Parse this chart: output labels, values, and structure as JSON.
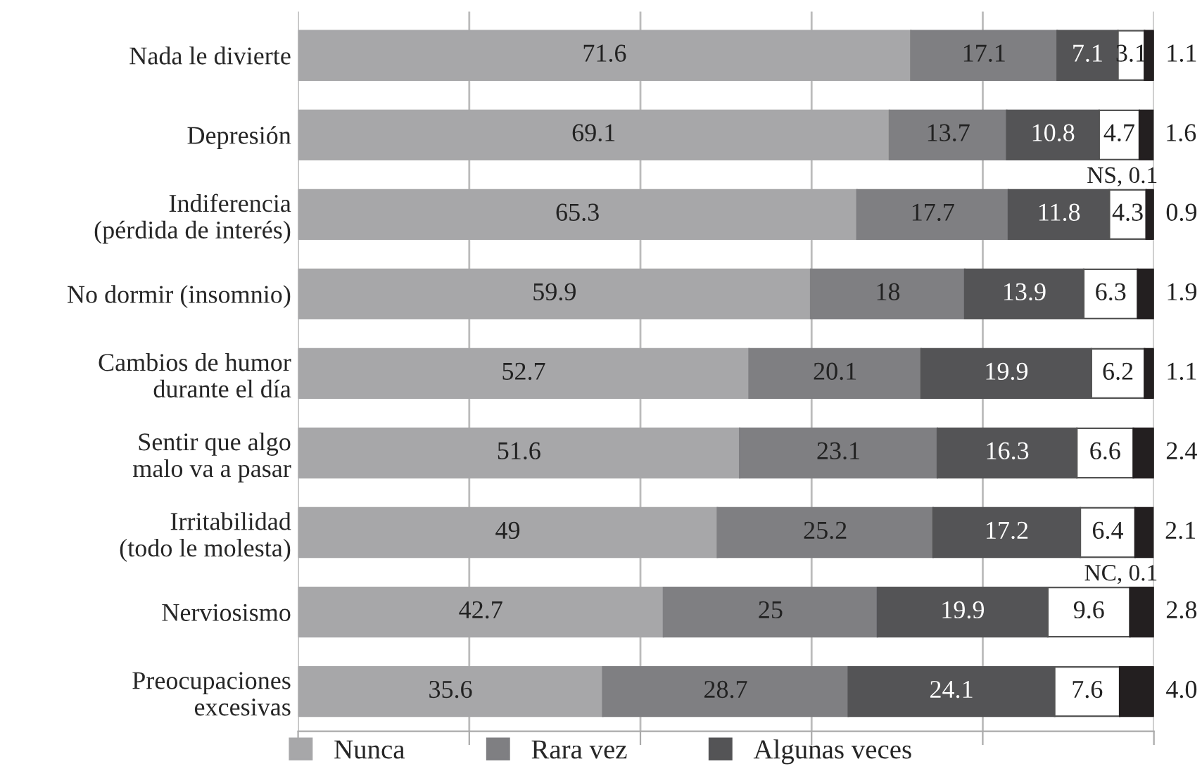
{
  "chart_data": {
    "type": "bar",
    "orientation": "horizontal",
    "stacked": true,
    "categories": [
      "Nada le divierte",
      "Depresión",
      "Indiferencia\n(pérdida de interés)",
      "No dormir (insomnio)",
      "Cambios de humor\ndurante el día",
      "Sentir que algo\nmalo va a pasar",
      "Irritabilidad\n(todo le molesta)",
      "Nerviosismo",
      "Preocupaciones\nexcesivas"
    ],
    "series": [
      {
        "name": "Nunca",
        "color": "#a7a7a9",
        "values": [
          71.6,
          69.1,
          65.3,
          59.9,
          52.7,
          51.6,
          49,
          42.7,
          35.6
        ],
        "value_labels": [
          "71.6",
          "69.1",
          "65.3",
          "59.9",
          "52.7",
          "51.6",
          "49",
          "42.7",
          "35.6"
        ]
      },
      {
        "name": "Rara vez",
        "color": "#7f7f82",
        "values": [
          17.1,
          13.7,
          17.7,
          18,
          20.1,
          23.1,
          25.2,
          25,
          28.7
        ],
        "value_labels": [
          "17.1",
          "13.7",
          "17.7",
          "18",
          "20.1",
          "23.1",
          "25.2",
          "25",
          "28.7"
        ]
      },
      {
        "name": "Algunas veces",
        "color": "#545456",
        "values": [
          7.1,
          10.8,
          11.8,
          13.9,
          19.9,
          16.3,
          17.2,
          19.9,
          24.1
        ],
        "value_labels": [
          "7.1",
          "10.8",
          "11.8",
          "13.9",
          "19.9",
          "16.3",
          "17.2",
          "19.9",
          "24.1"
        ]
      },
      {
        "color": "#ffffff",
        "values": [
          3.1,
          4.7,
          4.3,
          6.3,
          6.2,
          6.6,
          6.4,
          9.6,
          7.6
        ],
        "value_labels": [
          "3.1",
          "4.7",
          "4.3",
          "6.3",
          "6.2",
          "6.6",
          "6.4",
          "9.6",
          "7.6"
        ]
      },
      {
        "color": "#231f20",
        "values": [
          1.1,
          1.6,
          0.9,
          1.9,
          1.1,
          2.4,
          2.1,
          2.8,
          4.0
        ],
        "value_labels": [
          "1.1",
          "1.6",
          "0.9",
          "1.9",
          "1.1",
          "2.4",
          "2.1",
          "2.8",
          "4.0"
        ]
      }
    ],
    "xlim": [
      0,
      100
    ],
    "xticks": [
      {
        "value": 0,
        "label": null
      },
      {
        "value": 20,
        "label": null
      },
      {
        "value": 40,
        "label": null
      },
      {
        "value": 60,
        "label": null
      },
      {
        "value": 80,
        "label": null
      },
      {
        "value": 100,
        "label": null
      }
    ],
    "grid": "x",
    "legend": "bottom",
    "annotations": [
      {
        "text": "NS, 0.1",
        "x": 100,
        "y": "Indiferencia\n(pérdida de interés)"
      },
      {
        "text": "NC, 0.1",
        "x": 100,
        "y": "Nerviosismo"
      }
    ]
  }
}
